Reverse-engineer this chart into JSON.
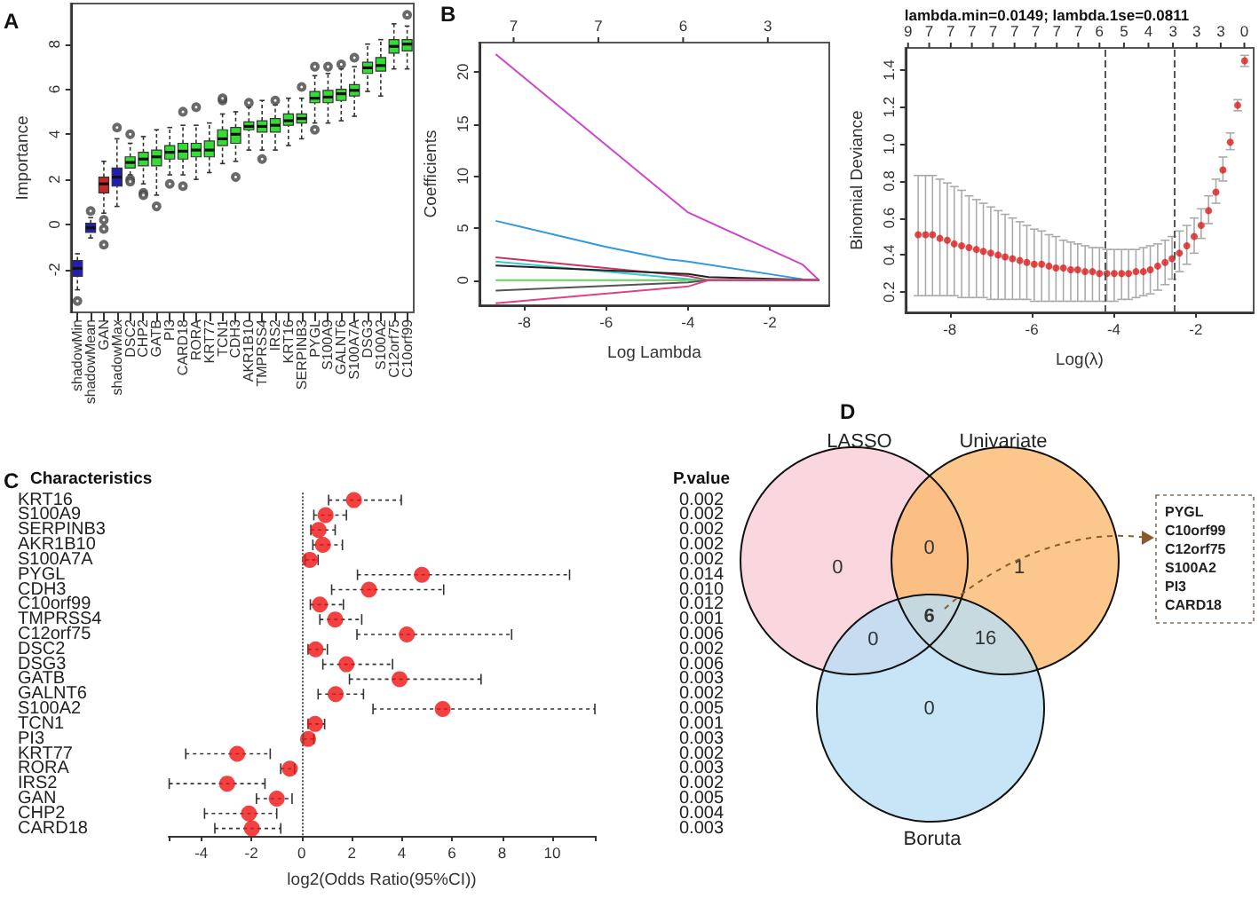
{
  "chart_data": [
    {
      "type": "box",
      "title": "A",
      "ylabel": "Importance",
      "categories": [
        "shadowMin",
        "shadowMean",
        "GAN",
        "shadowMax",
        "DSC2",
        "CHP2",
        "GATB",
        "PI3",
        "CARD18",
        "RORA",
        "KRT77",
        "TCN1",
        "CDH3",
        "AKR1B10",
        "TMPRSS4",
        "IRS2",
        "KRT16",
        "SERPINB3",
        "PYGL",
        "S100A9",
        "GALNT6",
        "S100A7A",
        "DSG3",
        "S100A2",
        "C12orf75",
        "C10orf99"
      ],
      "colors": [
        "#1f1fb4",
        "#1f1fb4",
        "#c62828",
        "#1f1fb4",
        "#33dd33",
        "#33dd33",
        "#33dd33",
        "#33dd33",
        "#33dd33",
        "#33dd33",
        "#33dd33",
        "#33dd33",
        "#33dd33",
        "#33dd33",
        "#33dd33",
        "#33dd33",
        "#33dd33",
        "#33dd33",
        "#33dd33",
        "#33dd33",
        "#33dd33",
        "#33dd33",
        "#33dd33",
        "#33dd33",
        "#33dd33",
        "#33dd33"
      ],
      "ylim": [
        -3.9,
        9.8
      ],
      "yticks": [
        -2,
        0,
        2,
        4,
        6,
        8
      ],
      "boxes": [
        {
          "low": -2.9,
          "q1": -2.3,
          "median": -1.95,
          "q3": -1.6,
          "high": -1.3,
          "outliers": [
            -3.4
          ]
        },
        {
          "low": -0.6,
          "q1": -0.35,
          "median": -0.15,
          "q3": 0.05,
          "high": 0.3,
          "outliers": [
            0.6
          ]
        },
        {
          "low": 0.5,
          "q1": 1.4,
          "median": 1.8,
          "q3": 2.1,
          "high": 2.8,
          "outliers": [
            0.2,
            -0.2,
            -0.9
          ]
        },
        {
          "low": 0.8,
          "q1": 1.7,
          "median": 2.1,
          "q3": 2.5,
          "high": 3.8,
          "outliers": [
            4.3
          ]
        },
        {
          "low": 2.2,
          "q1": 2.5,
          "median": 2.75,
          "q3": 3.0,
          "high": 3.6,
          "outliers": [
            4.0,
            2.0,
            1.9
          ]
        },
        {
          "low": 1.8,
          "q1": 2.6,
          "median": 2.9,
          "q3": 3.2,
          "high": 3.9,
          "outliers": [
            1.4,
            1.3
          ]
        },
        {
          "low": 1.3,
          "q1": 2.6,
          "median": 3.0,
          "q3": 3.3,
          "high": 4.2,
          "outliers": [
            0.8
          ]
        },
        {
          "low": 2.2,
          "q1": 2.9,
          "median": 3.2,
          "q3": 3.5,
          "high": 4.3,
          "outliers": [
            1.8
          ]
        },
        {
          "low": 2.2,
          "q1": 2.9,
          "median": 3.25,
          "q3": 3.6,
          "high": 4.4,
          "outliers": [
            1.7,
            5.0
          ]
        },
        {
          "low": 2.0,
          "q1": 3.0,
          "median": 3.3,
          "q3": 3.6,
          "high": 4.4,
          "outliers": [
            5.2
          ]
        },
        {
          "low": 2.3,
          "q1": 3.0,
          "median": 3.3,
          "q3": 3.7,
          "high": 4.5
        },
        {
          "low": 2.7,
          "q1": 3.5,
          "median": 3.8,
          "q3": 4.2,
          "high": 4.9,
          "outliers": [
            5.5,
            5.6
          ]
        },
        {
          "low": 2.8,
          "q1": 3.6,
          "median": 4.0,
          "q3": 4.3,
          "high": 5.0,
          "outliers": [
            2.1
          ]
        },
        {
          "low": 3.3,
          "q1": 4.2,
          "median": 4.35,
          "q3": 4.55,
          "high": 5.2,
          "outliers": [
            5.4
          ]
        },
        {
          "low": 3.3,
          "q1": 4.1,
          "median": 4.35,
          "q3": 4.6,
          "high": 5.5,
          "outliers": [
            2.9
          ]
        },
        {
          "low": 3.3,
          "q1": 4.1,
          "median": 4.4,
          "q3": 4.7,
          "high": 5.3,
          "outliers": [
            5.5
          ]
        },
        {
          "low": 3.5,
          "q1": 4.4,
          "median": 4.6,
          "q3": 4.9,
          "high": 5.6
        },
        {
          "low": 3.8,
          "q1": 4.5,
          "median": 4.7,
          "q3": 4.9,
          "high": 5.6,
          "outliers": [
            6.1
          ]
        },
        {
          "low": 4.5,
          "q1": 5.4,
          "median": 5.6,
          "q3": 5.9,
          "high": 6.6,
          "outliers": [
            4.2,
            7.0
          ]
        },
        {
          "low": 4.5,
          "q1": 5.4,
          "median": 5.65,
          "q3": 5.95,
          "high": 6.7,
          "outliers": [
            7.0
          ]
        },
        {
          "low": 4.6,
          "q1": 5.5,
          "median": 5.8,
          "q3": 6.0,
          "high": 6.9,
          "outliers": [
            7.1
          ]
        },
        {
          "low": 4.8,
          "q1": 5.7,
          "median": 5.95,
          "q3": 6.2,
          "high": 7.0,
          "outliers": [
            7.4
          ]
        },
        {
          "low": 5.9,
          "q1": 6.7,
          "median": 6.95,
          "q3": 7.2,
          "high": 8.0
        },
        {
          "low": 5.7,
          "q1": 6.8,
          "median": 7.05,
          "q3": 7.4,
          "high": 8.2
        },
        {
          "low": 6.9,
          "q1": 7.6,
          "median": 7.9,
          "q3": 8.2,
          "high": 8.9
        },
        {
          "low": 6.9,
          "q1": 7.7,
          "median": 8.0,
          "q3": 8.2,
          "high": 8.8,
          "outliers": [
            9.3
          ]
        }
      ]
    },
    {
      "type": "line",
      "title": "B",
      "xlabel": "Log Lambda",
      "ylabel": "Coefficients",
      "marker": "none",
      "xlim": [
        -9.1,
        -0.55
      ],
      "xticks": [
        -8,
        -6,
        -4,
        -2
      ],
      "annotations": [
        "7",
        "7",
        "6",
        "3"
      ],
      "ylim": [
        -2.4,
        22.8
      ],
      "yticks": [
        0,
        5,
        10,
        15,
        20
      ],
      "series": [
        {
          "color": "#cc44cc",
          "x": [
            -8.7,
            -4,
            -1.2,
            -0.8
          ],
          "values": [
            21.7,
            6.5,
            1.5,
            0
          ]
        },
        {
          "color": "#3399dd",
          "x": [
            -8.7,
            -6,
            -4.5,
            -4,
            -1.2,
            -0.8
          ],
          "values": [
            5.7,
            3.2,
            2.0,
            1.8,
            0.1,
            0
          ]
        },
        {
          "color": "#cc3366",
          "x": [
            -8.7,
            -4,
            -3.5,
            -0.8
          ],
          "values": [
            2.2,
            0.4,
            0,
            0
          ]
        },
        {
          "color": "#33cccc",
          "x": [
            -8.7,
            -3.7,
            -0.8
          ],
          "values": [
            1.8,
            0,
            0
          ]
        },
        {
          "color": "#222222",
          "x": [
            -8.7,
            -4,
            -3.5,
            -0.8
          ],
          "values": [
            1.4,
            0.6,
            0.3,
            0
          ]
        },
        {
          "color": "#66cc66",
          "x": [
            -8.7,
            -0.8
          ],
          "values": [
            0,
            0
          ]
        },
        {
          "color": "#555555",
          "x": [
            -8.7,
            -4,
            -3.5,
            -0.8
          ],
          "values": [
            -1.0,
            -0.2,
            0,
            0
          ]
        },
        {
          "color": "#dd4488",
          "x": [
            -8.7,
            -4,
            -3.5,
            -0.8
          ],
          "values": [
            -2.2,
            -0.6,
            0,
            0
          ]
        }
      ]
    },
    {
      "type": "scatter",
      "title": "lambda.min=0.0149; lambda.1se=0.0811",
      "xlabel": "Log(λ)",
      "ylabel": "Binomial Deviance",
      "color": "#dd1c1c",
      "marker": "circle",
      "xlim": [
        -9.08,
        -0.59
      ],
      "xticks": [
        -8,
        -6,
        -4,
        -2
      ],
      "annotations": [
        "9",
        "7",
        "7",
        "7",
        "7",
        "7",
        "7",
        "7",
        "7",
        "6",
        "5",
        "4",
        "3",
        "3",
        "3",
        "0"
      ],
      "ylim": [
        0.09,
        1.52
      ],
      "yticks": [
        0.2,
        0.4,
        0.6,
        0.8,
        {
          "value": 1,
          "label": "1.0"
        },
        1.2,
        1.4
      ],
      "x": [
        -8.77,
        -8.59,
        -8.42,
        -8.24,
        -8.06,
        -7.89,
        -7.71,
        -7.53,
        -7.35,
        -7.18,
        -7.0,
        -6.82,
        -6.65,
        -6.47,
        -6.29,
        -6.12,
        -5.94,
        -5.76,
        -5.58,
        -5.41,
        -5.23,
        -5.05,
        -4.88,
        -4.7,
        -4.52,
        -4.35,
        -4.17,
        -3.99,
        -3.81,
        -3.64,
        -3.46,
        -3.28,
        -3.11,
        -2.93,
        -2.75,
        -2.58,
        -2.4,
        -2.22,
        -2.04,
        -1.87,
        -1.69,
        -1.51,
        -1.34,
        -1.16,
        -0.98,
        -0.81
      ],
      "values": [
        0.51,
        0.51,
        0.51,
        0.49,
        0.48,
        0.46,
        0.45,
        0.44,
        0.43,
        0.42,
        0.41,
        0.4,
        0.39,
        0.38,
        0.37,
        0.36,
        0.35,
        0.35,
        0.34,
        0.33,
        0.33,
        0.32,
        0.32,
        0.31,
        0.31,
        0.3,
        0.3,
        0.3,
        0.3,
        0.3,
        0.31,
        0.31,
        0.32,
        0.34,
        0.36,
        0.38,
        0.41,
        0.45,
        0.5,
        0.56,
        0.64,
        0.74,
        0.86,
        1.01,
        1.21,
        1.45
      ],
      "errors": [
        [
          0.18,
          0.83
        ],
        [
          0.18,
          0.83
        ],
        [
          0.18,
          0.83
        ],
        [
          0.18,
          0.81
        ],
        [
          0.18,
          0.79
        ],
        [
          0.18,
          0.77
        ],
        [
          0.17,
          0.75
        ],
        [
          0.17,
          0.72
        ],
        [
          0.17,
          0.7
        ],
        [
          0.17,
          0.68
        ],
        [
          0.16,
          0.66
        ],
        [
          0.16,
          0.64
        ],
        [
          0.16,
          0.62
        ],
        [
          0.16,
          0.6
        ],
        [
          0.16,
          0.58
        ],
        [
          0.16,
          0.56
        ],
        [
          0.15,
          0.54
        ],
        [
          0.15,
          0.53
        ],
        [
          0.15,
          0.51
        ],
        [
          0.15,
          0.5
        ],
        [
          0.15,
          0.48
        ],
        [
          0.15,
          0.47
        ],
        [
          0.15,
          0.46
        ],
        [
          0.15,
          0.45
        ],
        [
          0.15,
          0.44
        ],
        [
          0.15,
          0.44
        ],
        [
          0.15,
          0.43
        ],
        [
          0.15,
          0.43
        ],
        [
          0.16,
          0.43
        ],
        [
          0.16,
          0.43
        ],
        [
          0.17,
          0.43
        ],
        [
          0.18,
          0.44
        ],
        [
          0.19,
          0.45
        ],
        [
          0.21,
          0.46
        ],
        [
          0.24,
          0.48
        ],
        [
          0.27,
          0.5
        ],
        [
          0.31,
          0.53
        ],
        [
          0.35,
          0.56
        ],
        [
          0.41,
          0.6
        ],
        [
          0.49,
          0.65
        ],
        [
          0.57,
          0.72
        ],
        [
          0.68,
          0.81
        ],
        [
          0.8,
          0.93
        ],
        [
          0.97,
          1.06
        ],
        [
          1.18,
          1.24
        ],
        [
          1.42,
          1.48
        ]
      ],
      "ref_lines": [
        {
          "axis": "x",
          "value": -4.21,
          "line_style": "dashed"
        },
        {
          "axis": "x",
          "value": -2.51,
          "line_style": "dashed"
        }
      ]
    },
    {
      "type": "scatter",
      "orientation": "horizontal",
      "title": "C",
      "ylabel": "Characteristics",
      "y2label": "P.value",
      "xlabel": "log2(Odds Ratio(95%CI))",
      "color": "#ee1111",
      "marker": "circle",
      "categories": [
        "KRT16",
        "S100A9",
        "SERPINB3",
        "AKR1B10",
        "S100A7A",
        "PYGL",
        "CDH3",
        "C10orf99",
        "TMPRSS4",
        "C12orf75",
        "DSC2",
        "DSG3",
        "GATB",
        "GALNT6",
        "S100A2",
        "TCN1",
        "PI3",
        "KRT77",
        "RORA",
        "IRS2",
        "GAN",
        "CHP2",
        "CARD18"
      ],
      "values": [
        2.09,
        0.96,
        0.68,
        0.85,
        0.33,
        4.8,
        2.69,
        0.73,
        1.34,
        4.2,
        0.56,
        1.79,
        3.91,
        1.36,
        5.63,
        0.54,
        0.26,
        -2.57,
        -0.47,
        -2.97,
        -0.99,
        -2.1,
        -1.98
      ],
      "errors": [
        [
          1.08,
          3.98
        ],
        [
          0.49,
          1.79
        ],
        [
          0.37,
          1.34
        ],
        [
          0.45,
          1.63
        ],
        [
          0.14,
          0.66
        ],
        [
          2.23,
          10.69
        ],
        [
          1.2,
          5.67
        ],
        [
          0.35,
          1.67
        ],
        [
          0.73,
          2.4
        ],
        [
          2.21,
          8.38
        ],
        [
          0.26,
          1.03
        ],
        [
          0.85,
          3.63
        ],
        [
          1.91,
          7.16
        ],
        [
          0.66,
          2.47
        ],
        [
          2.85,
          11.7
        ],
        [
          0.26,
          0.92
        ],
        [
          0.07,
          0.49
        ],
        [
          -4.62,
          -1.25
        ],
        [
          -0.83,
          -0.28
        ],
        [
          -5.28,
          -1.46
        ],
        [
          -1.8,
          -0.38
        ],
        [
          -3.87,
          -0.99
        ],
        [
          -3.46,
          -0.83
        ]
      ],
      "xlim": [
        -5.3,
        11.7
      ],
      "xticks": [
        {
          "value": -5.3,
          "label": null
        },
        -4,
        -2,
        0,
        2,
        4,
        6,
        8,
        10,
        {
          "value": 11.7,
          "label": null
        }
      ],
      "ref_lines": [
        {
          "axis": "x",
          "value": 0,
          "line_style": "dotted"
        }
      ],
      "annotations": [
        "0.002",
        "0.002",
        "0.002",
        "0.002",
        "0.002",
        "0.014",
        "0.010",
        "0.012",
        "0.001",
        "0.006",
        "0.002",
        "0.006",
        "0.003",
        "0.002",
        "0.005",
        "0.001",
        "0.003",
        "0.002",
        "0.003",
        "0.002",
        "0.005",
        "0.004",
        "0.003"
      ]
    },
    {
      "type": "other",
      "title": "D",
      "categories": [
        "LASSO",
        "Univariate",
        "Boruta"
      ],
      "colors": [
        "#f9cdd6",
        "#fbb96f",
        "#b9def5"
      ],
      "annotations": [
        "0",
        "1",
        "0",
        "0",
        "0",
        "16",
        "6",
        "PYGL\nC10orf99\nC12orf75\nS100A2\nPI3\nCARD18"
      ]
    }
  ]
}
